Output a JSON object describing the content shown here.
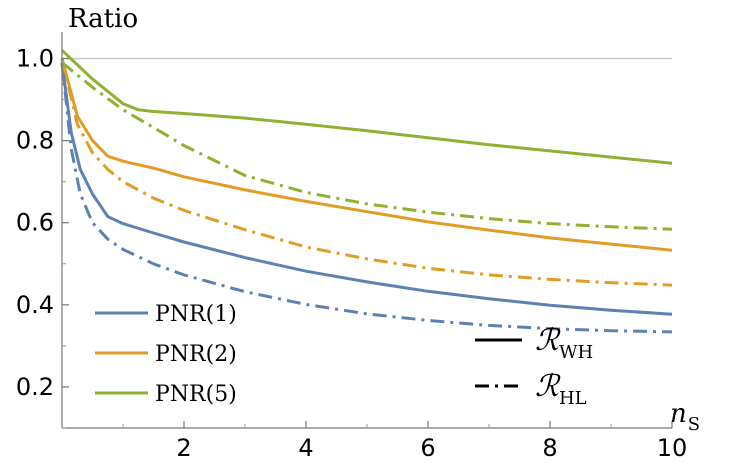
{
  "chart_data": {
    "type": "line",
    "title": "",
    "ylabel": "Ratio",
    "xlabel": "n",
    "xlabel_sub": "S",
    "xlim": [
      0,
      10
    ],
    "ylim": [
      0.1,
      1.05
    ],
    "xticks": [
      2,
      4,
      6,
      8,
      10
    ],
    "yticks": [
      0.2,
      0.4,
      0.6,
      0.8,
      1.0
    ],
    "ytick_labels": [
      "0.2",
      "0.4",
      "0.6",
      "0.8",
      "1.0"
    ],
    "reference_line": 1.0,
    "grid": false,
    "colors": {
      "pnr1": "#5e81b5",
      "pnr2": "#e19c24",
      "pnr5": "#8fb032",
      "ref": "#c8c8c8"
    },
    "series": [
      {
        "name": "PNR(1)",
        "style": "WH",
        "color": "#5e81b5",
        "x": [
          0,
          0.15,
          0.3,
          0.5,
          0.75,
          1,
          1.5,
          2,
          3,
          4,
          5,
          6,
          7,
          8,
          9,
          10
        ],
        "values": [
          0.99,
          0.82,
          0.73,
          0.67,
          0.615,
          0.598,
          0.575,
          0.553,
          0.515,
          0.482,
          0.456,
          0.433,
          0.415,
          0.399,
          0.387,
          0.377
        ]
      },
      {
        "name": "PNR(1)",
        "style": "HL",
        "color": "#5e81b5",
        "x": [
          0,
          0.15,
          0.3,
          0.5,
          0.75,
          1,
          1.5,
          2,
          3,
          4,
          5,
          6,
          7,
          8,
          9,
          10
        ],
        "values": [
          0.99,
          0.78,
          0.67,
          0.6,
          0.56,
          0.535,
          0.5,
          0.473,
          0.432,
          0.401,
          0.378,
          0.362,
          0.35,
          0.342,
          0.337,
          0.334
        ]
      },
      {
        "name": "PNR(2)",
        "style": "WH",
        "color": "#e19c24",
        "x": [
          0,
          0.25,
          0.5,
          0.75,
          1,
          1.5,
          2,
          3,
          4,
          5,
          6,
          7,
          8,
          9,
          10
        ],
        "values": [
          1.0,
          0.86,
          0.8,
          0.762,
          0.75,
          0.733,
          0.712,
          0.68,
          0.652,
          0.627,
          0.602,
          0.582,
          0.563,
          0.548,
          0.533
        ]
      },
      {
        "name": "PNR(2)",
        "style": "HL",
        "color": "#e19c24",
        "x": [
          0,
          0.25,
          0.5,
          0.75,
          1,
          1.5,
          2,
          3,
          4,
          5,
          6,
          7,
          8,
          9,
          10
        ],
        "values": [
          1.0,
          0.84,
          0.77,
          0.73,
          0.7,
          0.66,
          0.63,
          0.583,
          0.541,
          0.512,
          0.489,
          0.473,
          0.462,
          0.454,
          0.448
        ]
      },
      {
        "name": "PNR(5)",
        "style": "WH",
        "color": "#8fb032",
        "x": [
          0,
          0.5,
          1,
          1.25,
          1.5,
          2,
          3,
          4,
          5,
          6,
          7,
          8,
          9,
          10
        ],
        "values": [
          1.02,
          0.95,
          0.89,
          0.875,
          0.871,
          0.866,
          0.855,
          0.84,
          0.824,
          0.807,
          0.79,
          0.775,
          0.76,
          0.745
        ]
      },
      {
        "name": "PNR(5)",
        "style": "HL",
        "color": "#8fb032",
        "x": [
          0,
          0.5,
          1,
          1.5,
          2,
          3,
          4,
          5,
          6,
          7,
          8,
          9,
          10
        ],
        "values": [
          0.99,
          0.93,
          0.875,
          0.832,
          0.788,
          0.715,
          0.674,
          0.646,
          0.626,
          0.61,
          0.598,
          0.59,
          0.584
        ]
      }
    ],
    "legend": {
      "placement": "bottom-left",
      "entries": [
        {
          "label": "PNR(1)",
          "color": "#5e81b5"
        },
        {
          "label": "PNR(2)",
          "color": "#e19c24"
        },
        {
          "label": "PNR(5)",
          "color": "#8fb032"
        }
      ]
    },
    "style_legend": {
      "placement": "bottom-right",
      "entries": [
        {
          "symbol": "ℛ",
          "sub": "WH",
          "dash": "solid"
        },
        {
          "symbol": "ℛ",
          "sub": "HL",
          "dash": "dash-dot"
        }
      ]
    }
  }
}
